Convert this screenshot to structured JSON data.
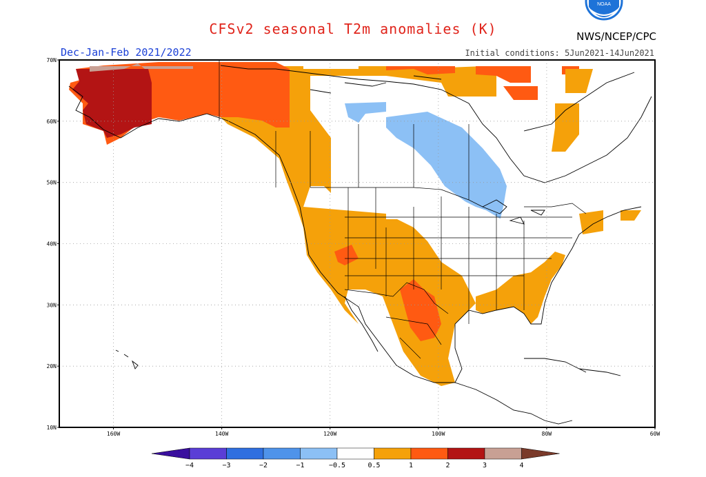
{
  "title": "CFSv2 seasonal T2m anomalies (K)",
  "agency": "NWS/NCEP/CPC",
  "period": "Dec-Jan-Feb 2021/2022",
  "initial_conditions": "Initial conditions: 5Jun2021-14Jun2021",
  "colors": {
    "title": "#e0241b",
    "period": "#1a3fd6",
    "logo_blue": "#1e73d8"
  },
  "map": {
    "lat_labels": [
      "70N",
      "60N",
      "50N",
      "40N",
      "30N",
      "20N",
      "10N"
    ],
    "lon_labels": [
      "160W",
      "140W",
      "120W",
      "100W",
      "80W",
      "60W"
    ],
    "lat_values": [
      70,
      60,
      50,
      40,
      30,
      20,
      10
    ],
    "lon_values": [
      -160,
      -140,
      -120,
      -100,
      -80,
      -60
    ]
  },
  "colorbar": {
    "tick_labels": [
      "-4",
      "-3",
      "-2",
      "-1",
      "-0.5",
      "0.5",
      "1",
      "2",
      "3",
      "4"
    ],
    "classes": [
      {
        "range": "< -4",
        "color": "#3a0f9e"
      },
      {
        "range": "-4 to -3",
        "color": "#5a3ed6"
      },
      {
        "range": "-3 to -2",
        "color": "#2f6fe0"
      },
      {
        "range": "-2 to -1",
        "color": "#4f93ea"
      },
      {
        "range": "-1 to -0.5",
        "color": "#8cc0f5"
      },
      {
        "range": "-0.5 to 0.5",
        "color": "#ffffff"
      },
      {
        "range": "0.5 to 1",
        "color": "#f5a10a"
      },
      {
        "range": "1 to 2",
        "color": "#ff5a12"
      },
      {
        "range": "2 to 3",
        "color": "#b31414"
      },
      {
        "range": "3 to 4",
        "color": "#c8a094"
      },
      {
        "range": "> 4",
        "color": "#7a3a2a"
      }
    ]
  },
  "anomaly_regions": [
    {
      "name": "Alaska interior",
      "class": "2 to 3",
      "color": "#b31414"
    },
    {
      "name": "Far northern Alaska",
      "class": "3 to 4",
      "color": "#c8a094"
    },
    {
      "name": "Yukon and southern Alaska",
      "class": "1 to 2",
      "color": "#ff5a12"
    },
    {
      "name": "Western Canada and Pacific coast",
      "class": "0.5 to 1",
      "color": "#f5a10a"
    },
    {
      "name": "Central Canada",
      "class": "-1 to -0.5",
      "color": "#8cc0f5"
    },
    {
      "name": "Southwest US and Mexico",
      "class": "0.5 to 1",
      "color": "#f5a10a"
    },
    {
      "name": "Northern Mexico plateau",
      "class": "1 to 2",
      "color": "#ff5a12"
    },
    {
      "name": "Southeast US",
      "class": "0.5 to 1",
      "color": "#f5a10a"
    },
    {
      "name": "Arctic islands",
      "class": "0.5 to 2",
      "color": "#ff5a12"
    }
  ]
}
